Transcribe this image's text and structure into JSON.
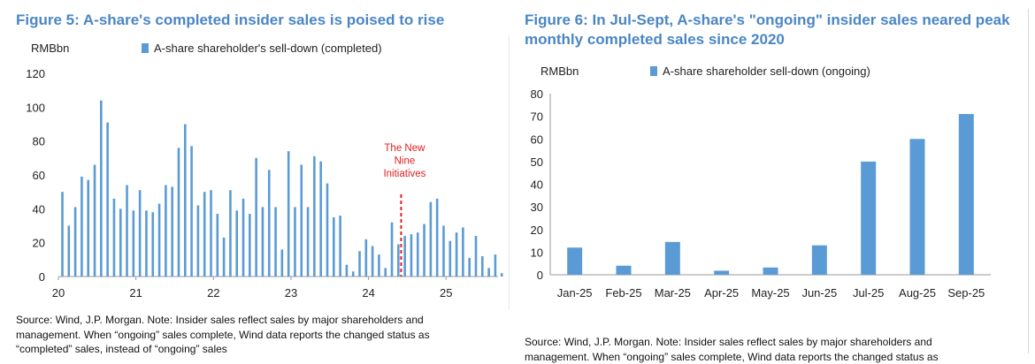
{
  "accent_color": "#4a86c5",
  "bar_color": "#5b9bd5",
  "annotation_color": "#e02020",
  "left": {
    "title": "Figure 5: A-share's completed insider sales is poised to rise",
    "unit": "RMBbn",
    "legend": "A-share shareholder's sell-down (completed)",
    "annotation": {
      "lines": [
        "The New",
        "Nine",
        "Initiatives"
      ],
      "x": 24.42
    },
    "source_lines": [
      "Source: Wind, J.P. Morgan. Note: Insider sales reflect sales by major shareholders and",
      "management. When “ongoing” sales complete, Wind data reports the changed status as",
      "“completed” sales, instead of “ongoing” sales"
    ]
  },
  "right": {
    "title_lines": [
      "Figure 6: In Jul-Sept, A-share's \"ongoing\" insider sales neared peak",
      "monthly completed sales since 2020"
    ],
    "unit": "RMBbn",
    "legend": "A-share shareholder sell-down (ongoing)",
    "source_lines": [
      "Source: Wind, J.P. Morgan. Note: Insider sales reflect sales by major shareholders and",
      "management. When “ongoing” sales complete, Wind data reports the changed status as"
    ]
  },
  "chart_data": [
    {
      "type": "bar",
      "title": "Figure 5: A-share's completed insider sales is poised to rise",
      "ylabel": "RMBbn",
      "ylim": [
        0,
        120
      ],
      "yticks": [
        0,
        20,
        40,
        60,
        80,
        100,
        120
      ],
      "xlim": [
        20,
        25.67
      ],
      "xticks": [
        "20",
        "21",
        "22",
        "23",
        "24",
        "25"
      ],
      "x_start": "Jan-20",
      "series": [
        {
          "name": "A-share shareholder's sell-down (completed)",
          "values": [
            50,
            30,
            41,
            59,
            57,
            66,
            104,
            91,
            46,
            40,
            54,
            39,
            51,
            39,
            38,
            43,
            54,
            53,
            76,
            90,
            77,
            42,
            50,
            51,
            37,
            23,
            51,
            39,
            46,
            37,
            70,
            41,
            63,
            41,
            16,
            74,
            41,
            66,
            41,
            71,
            68,
            55,
            35,
            36,
            7,
            3,
            15,
            22,
            18,
            13,
            5,
            32,
            19,
            24,
            25,
            26,
            31,
            44,
            46,
            30,
            21,
            26,
            29,
            11,
            24,
            12,
            5,
            13,
            2
          ]
        }
      ]
    },
    {
      "type": "bar",
      "title": "Figure 6: In Jul-Sept, A-share's \"ongoing\" insider sales neared peak monthly completed sales since 2020",
      "ylabel": "RMBbn",
      "ylim": [
        0,
        80
      ],
      "yticks": [
        0,
        10,
        20,
        30,
        40,
        50,
        60,
        70,
        80
      ],
      "categories": [
        "Jan-25",
        "Feb-25",
        "Mar-25",
        "Apr-25",
        "May-25",
        "Jun-25",
        "Jul-25",
        "Aug-25",
        "Sep-25"
      ],
      "series": [
        {
          "name": "A-share shareholder sell-down (ongoing)",
          "values": [
            12,
            4,
            14.5,
            1.8,
            3.2,
            13,
            50,
            60,
            71
          ]
        }
      ]
    }
  ]
}
